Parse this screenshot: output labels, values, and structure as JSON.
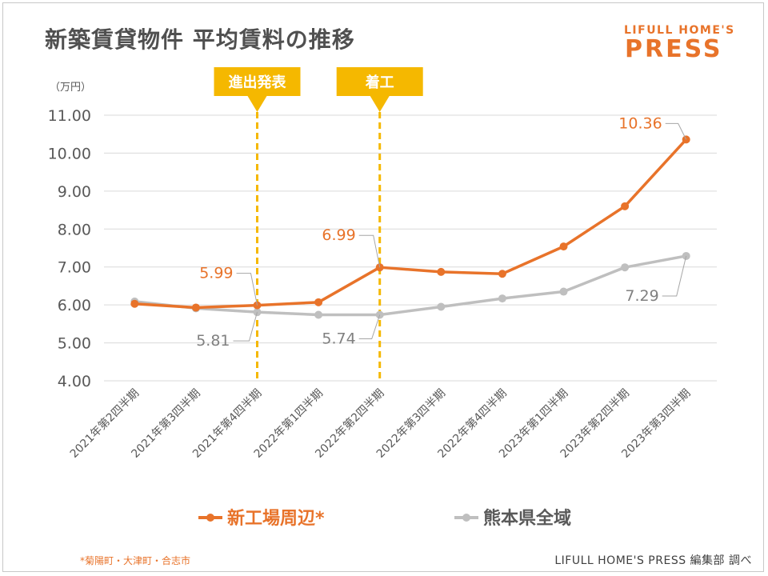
{
  "title": "新築賃貸物件 平均賃料の推移",
  "logo": {
    "top": "LIFULL HOME'S",
    "main": "PRESS"
  },
  "footnote": "*菊陽町・大津町・合志市",
  "credit": "LIFULL HOME'S PRESS 編集部 調べ",
  "colors": {
    "orange": "#e8732a",
    "gray": "#bfbfbf",
    "marker": "#f5b800",
    "text": "#595959"
  },
  "chart_data": {
    "type": "line",
    "title": "新築賃貸物件 平均賃料の推移",
    "unit_label": "（万円）",
    "categories": [
      "2021年第2四半期",
      "2021年第3四半期",
      "2021年第4四半期",
      "2022年第1四半期",
      "2022年第2四半期",
      "2022年第3四半期",
      "2022年第4四半期",
      "2023年第1四半期",
      "2023年第2四半期",
      "2023年第3四半期"
    ],
    "ylim": [
      4.0,
      11.0
    ],
    "yticks": [
      "4.00",
      "5.00",
      "6.00",
      "7.00",
      "8.00",
      "9.00",
      "10.00",
      "11.00"
    ],
    "grid": true,
    "legend_position": "bottom",
    "series": [
      {
        "name": "新工場周辺*",
        "color": "#e8732a",
        "values": [
          6.03,
          5.93,
          5.99,
          6.07,
          6.99,
          6.87,
          6.82,
          7.54,
          8.6,
          10.36
        ]
      },
      {
        "name": "熊本県全域",
        "color": "#bfbfbf",
        "values": [
          6.09,
          5.91,
          5.81,
          5.74,
          5.74,
          5.95,
          6.17,
          6.35,
          6.99,
          7.29
        ]
      }
    ],
    "data_labels": [
      {
        "series": 0,
        "index": 2,
        "text": "5.99"
      },
      {
        "series": 0,
        "index": 4,
        "text": "6.99"
      },
      {
        "series": 0,
        "index": 9,
        "text": "10.36"
      },
      {
        "series": 1,
        "index": 2,
        "text": "5.81"
      },
      {
        "series": 1,
        "index": 4,
        "text": "5.74"
      },
      {
        "series": 1,
        "index": 9,
        "text": "7.29"
      }
    ],
    "annotations": [
      {
        "index": 2,
        "text": "進出発表"
      },
      {
        "index": 4,
        "text": "着工"
      }
    ]
  }
}
